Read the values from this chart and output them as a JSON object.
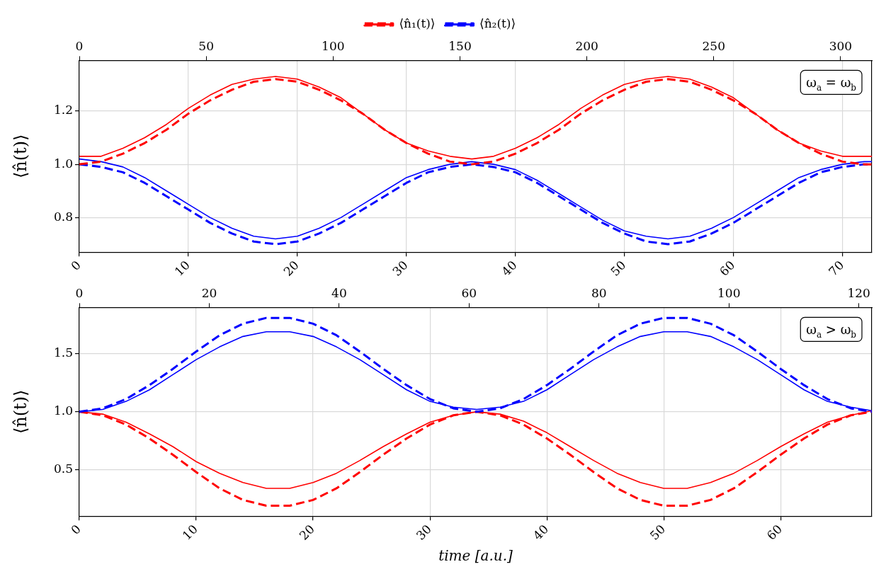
{
  "chart_data": [
    {
      "type": "line",
      "legend": "top",
      "grid": true,
      "marker": "none",
      "ylabel": "⟨n̂(t)⟩",
      "annotations": [
        "ω$_{a}$ = ω$_{b}$"
      ],
      "xlim": [
        0,
        72.7
      ],
      "xticks": [
        0,
        10,
        20,
        30,
        40,
        50,
        60,
        70
      ],
      "x2lim": [
        0,
        312.3
      ],
      "x2ticks": [
        0,
        50,
        100,
        150,
        200,
        250,
        300
      ],
      "ylim": [
        0.67,
        1.39
      ],
      "yticks": [
        0.8,
        {
          "value": 1,
          "label": "1.0"
        },
        1.2
      ],
      "x": [
        0,
        2,
        4,
        6,
        8,
        10,
        12,
        14,
        16,
        18,
        20,
        22,
        24,
        26,
        28,
        30,
        32,
        34,
        36,
        38,
        40,
        42,
        44,
        46,
        48,
        50,
        52,
        54,
        56,
        58,
        60,
        62,
        64,
        66,
        68,
        70,
        72,
        72.7
      ],
      "series": [
        {
          "name": "⟨n̂₁(t)⟩",
          "color": "#ff0000",
          "line_style": "dashed",
          "values": [
            1.0,
            1.01,
            1.04,
            1.08,
            1.13,
            1.19,
            1.24,
            1.28,
            1.31,
            1.32,
            1.31,
            1.28,
            1.24,
            1.19,
            1.13,
            1.08,
            1.04,
            1.01,
            1.0,
            1.01,
            1.04,
            1.08,
            1.13,
            1.19,
            1.24,
            1.28,
            1.31,
            1.32,
            1.31,
            1.28,
            1.24,
            1.19,
            1.13,
            1.08,
            1.04,
            1.01,
            1.0,
            1.0
          ]
        },
        {
          "name": "⟨n̂₂(t)⟩",
          "color": "#0000ff",
          "line_style": "dashed",
          "values": [
            1.0,
            0.99,
            0.97,
            0.93,
            0.88,
            0.83,
            0.78,
            0.74,
            0.71,
            0.7,
            0.71,
            0.74,
            0.78,
            0.83,
            0.88,
            0.93,
            0.97,
            0.99,
            1.0,
            0.99,
            0.97,
            0.93,
            0.88,
            0.83,
            0.78,
            0.74,
            0.71,
            0.7,
            0.71,
            0.74,
            0.78,
            0.83,
            0.88,
            0.93,
            0.97,
            0.99,
            1.0,
            1.0
          ]
        },
        {
          "color": "#ff0000",
          "line_style": "solid",
          "values": [
            1.03,
            1.03,
            1.06,
            1.1,
            1.15,
            1.21,
            1.26,
            1.3,
            1.32,
            1.33,
            1.32,
            1.29,
            1.25,
            1.19,
            1.13,
            1.08,
            1.05,
            1.03,
            1.02,
            1.03,
            1.06,
            1.1,
            1.15,
            1.21,
            1.26,
            1.3,
            1.32,
            1.33,
            1.32,
            1.29,
            1.25,
            1.19,
            1.13,
            1.08,
            1.05,
            1.03,
            1.03,
            1.03
          ]
        },
        {
          "color": "#0000ff",
          "line_style": "solid",
          "values": [
            1.02,
            1.01,
            0.99,
            0.95,
            0.9,
            0.85,
            0.8,
            0.76,
            0.73,
            0.72,
            0.73,
            0.76,
            0.8,
            0.85,
            0.9,
            0.95,
            0.98,
            1.0,
            1.01,
            1.0,
            0.98,
            0.94,
            0.89,
            0.84,
            0.79,
            0.75,
            0.73,
            0.72,
            0.73,
            0.76,
            0.8,
            0.85,
            0.9,
            0.95,
            0.98,
            1.0,
            1.01,
            1.01
          ]
        }
      ]
    },
    {
      "type": "line",
      "grid": true,
      "marker": "none",
      "ylabel": "⟨n̂(t)⟩",
      "xlabel": "time [a.u.]",
      "annotations": [
        "ω$_{a}$ > ω$_{b}$"
      ],
      "xlim": [
        0,
        67.8
      ],
      "xticks": [
        0,
        10,
        20,
        30,
        40,
        50,
        60
      ],
      "x2lim": [
        0,
        122
      ],
      "x2ticks": [
        0,
        20,
        40,
        60,
        80,
        100,
        120
      ],
      "ylim": [
        0.1,
        1.9
      ],
      "yticks": [
        0.5,
        {
          "value": 1,
          "label": "1.0"
        },
        1.5
      ],
      "x": [
        0,
        2,
        4,
        6,
        8,
        10,
        12,
        14,
        16,
        18,
        20,
        22,
        24,
        26,
        28,
        30,
        32,
        34,
        36,
        38,
        40,
        42,
        44,
        46,
        48,
        50,
        52,
        54,
        56,
        58,
        60,
        62,
        64,
        66,
        67.8
      ],
      "series": [
        {
          "color": "#0000ff",
          "line_style": "dashed",
          "values": [
            1.0,
            1.03,
            1.11,
            1.23,
            1.37,
            1.52,
            1.66,
            1.76,
            1.81,
            1.81,
            1.76,
            1.66,
            1.52,
            1.37,
            1.23,
            1.11,
            1.03,
            1.0,
            1.03,
            1.11,
            1.23,
            1.37,
            1.52,
            1.66,
            1.76,
            1.81,
            1.81,
            1.76,
            1.66,
            1.52,
            1.37,
            1.23,
            1.11,
            1.03,
            1.0
          ]
        },
        {
          "color": "#ff0000",
          "line_style": "dashed",
          "values": [
            1.0,
            0.97,
            0.89,
            0.77,
            0.63,
            0.48,
            0.34,
            0.24,
            0.19,
            0.19,
            0.24,
            0.34,
            0.48,
            0.63,
            0.77,
            0.89,
            0.97,
            1.0,
            0.97,
            0.89,
            0.77,
            0.63,
            0.48,
            0.34,
            0.24,
            0.19,
            0.19,
            0.24,
            0.34,
            0.48,
            0.63,
            0.77,
            0.89,
            0.97,
            1.0
          ]
        },
        {
          "color": "#0000ff",
          "line_style": "solid",
          "values": [
            1.0,
            1.02,
            1.09,
            1.19,
            1.32,
            1.45,
            1.56,
            1.65,
            1.69,
            1.69,
            1.65,
            1.56,
            1.45,
            1.32,
            1.19,
            1.09,
            1.04,
            1.02,
            1.04,
            1.09,
            1.19,
            1.32,
            1.45,
            1.56,
            1.65,
            1.69,
            1.69,
            1.65,
            1.56,
            1.45,
            1.32,
            1.19,
            1.09,
            1.04,
            1.01
          ]
        },
        {
          "color": "#ff0000",
          "line_style": "solid",
          "values": [
            1.0,
            0.98,
            0.91,
            0.81,
            0.7,
            0.57,
            0.47,
            0.39,
            0.34,
            0.34,
            0.39,
            0.47,
            0.58,
            0.7,
            0.81,
            0.91,
            0.97,
            1.0,
            0.98,
            0.92,
            0.82,
            0.7,
            0.58,
            0.47,
            0.39,
            0.34,
            0.34,
            0.39,
            0.47,
            0.58,
            0.7,
            0.81,
            0.91,
            0.97,
            1.01
          ]
        }
      ]
    }
  ]
}
